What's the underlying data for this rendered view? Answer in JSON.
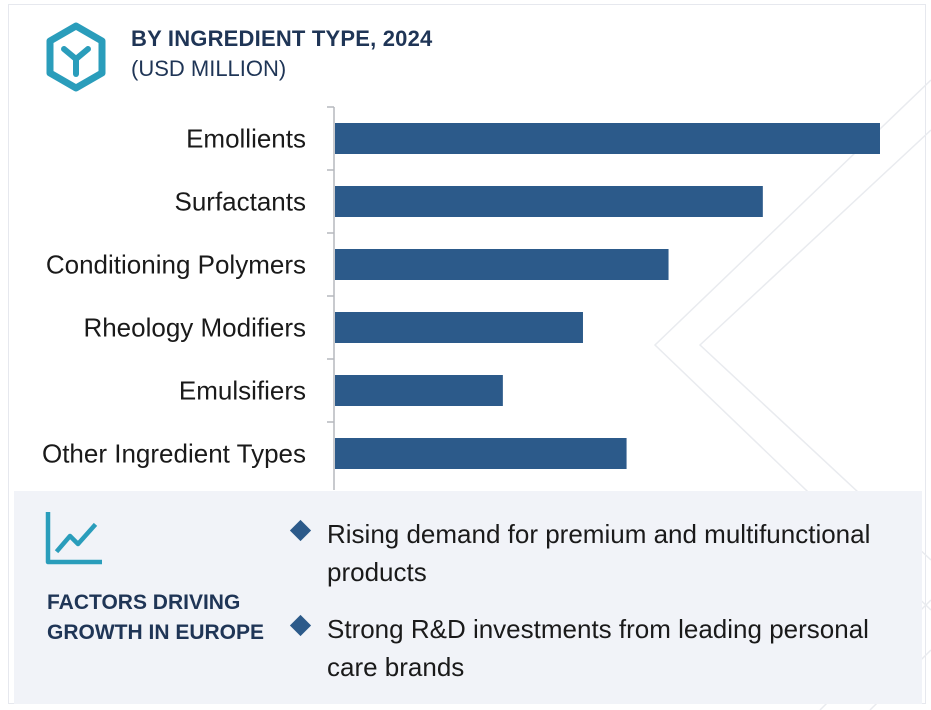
{
  "header": {
    "title": "BY INGREDIENT TYPE, 2024",
    "subtitle": "(USD MILLION)"
  },
  "chart_data": {
    "type": "bar",
    "orientation": "horizontal",
    "title": "BY INGREDIENT TYPE, 2024",
    "subtitle": "(USD MILLION)",
    "categories": [
      "Emollients",
      "Surfactants",
      "Conditioning Polymers",
      "Rheology Modifiers",
      "Emulsifiers",
      "Other Ingredient Types"
    ],
    "values": [
      100,
      78.5,
      61.2,
      45.5,
      30.8,
      53.5
    ],
    "xlim": [
      0,
      100
    ],
    "bar_color": "#2c5a8a",
    "grid": false,
    "legend": "none"
  },
  "factors": {
    "title": "FACTORS DRIVING GROWTH IN EUROPE",
    "items": [
      "Rising demand for premium and multifunctional products",
      "Strong R&D investments from leading personal care brands"
    ]
  },
  "colors": {
    "accent": "#2c5a8a",
    "heading": "#1f3556",
    "icon": "#2a9dbb",
    "panel": "#f1f3f8"
  },
  "icons": [
    "logo-icon",
    "trend-chart-icon",
    "diamond-bullet-icon"
  ]
}
